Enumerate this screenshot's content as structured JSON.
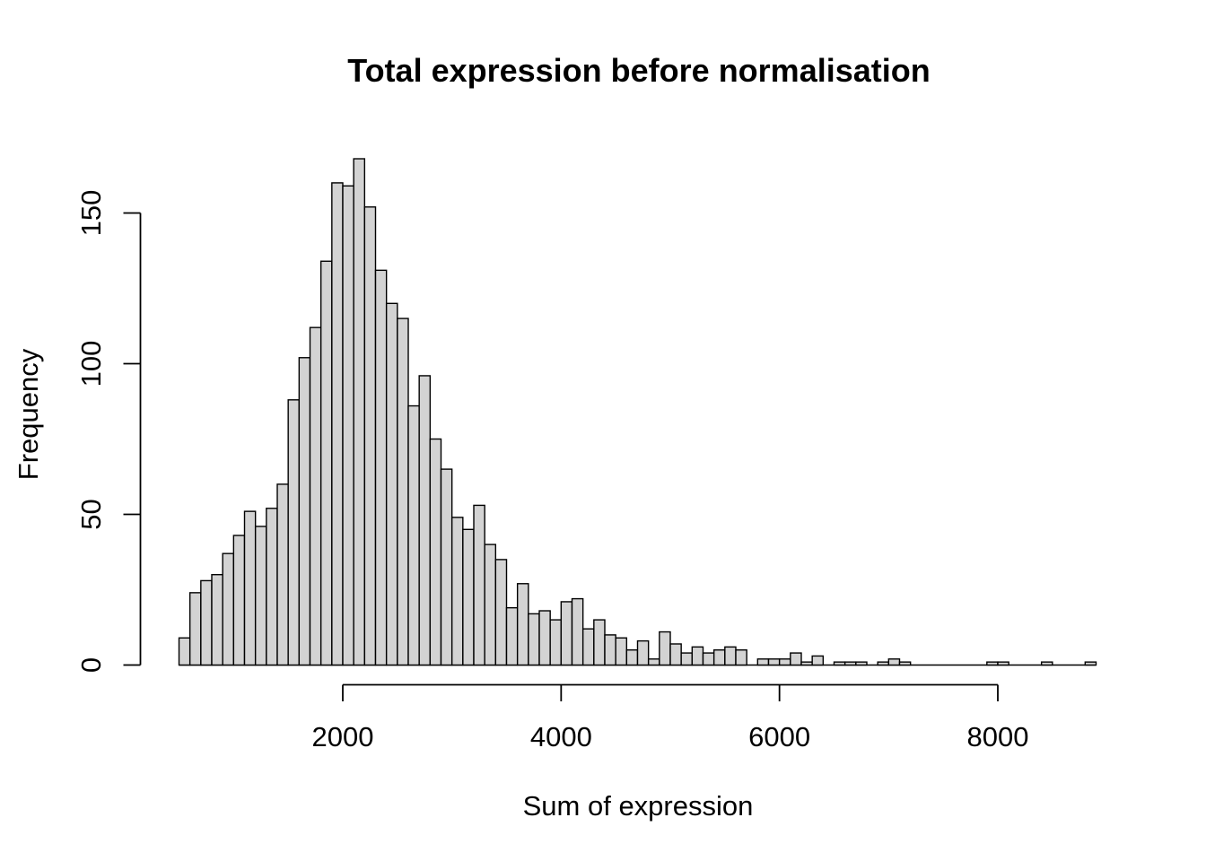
{
  "chart_data": {
    "type": "bar",
    "subtype": "histogram",
    "title": "Total expression before normalisation",
    "xlabel": "Sum of expression",
    "ylabel": "Frequency",
    "bin_start": 500,
    "bin_width": 100,
    "categories_note": "bins run 500-8900 in steps of 100",
    "counts": [
      9,
      24,
      28,
      30,
      37,
      43,
      51,
      46,
      52,
      60,
      88,
      102,
      112,
      134,
      160,
      159,
      168,
      152,
      131,
      120,
      115,
      86,
      96,
      75,
      65,
      49,
      45,
      53,
      40,
      35,
      19,
      27,
      17,
      18,
      15,
      21,
      22,
      12,
      15,
      10,
      9,
      5,
      8,
      2,
      11,
      7,
      4,
      6,
      4,
      5,
      6,
      5,
      0,
      2,
      2,
      2,
      4,
      1,
      3,
      0,
      1,
      1,
      1,
      0,
      1,
      2,
      1,
      0,
      0,
      0,
      0,
      0,
      0,
      0,
      1,
      1,
      0,
      0,
      0,
      1,
      0,
      0,
      0,
      1
    ],
    "x_ticks": [
      2000,
      4000,
      6000,
      8000
    ],
    "y_ticks": [
      0,
      50,
      100,
      150
    ],
    "xlim": [
      500,
      8900
    ],
    "ylim": [
      0,
      168
    ],
    "grid": "off",
    "legend": "none",
    "bar_fill": "#d3d3d3",
    "bar_stroke": "#000000",
    "axis_color": "#000000"
  }
}
